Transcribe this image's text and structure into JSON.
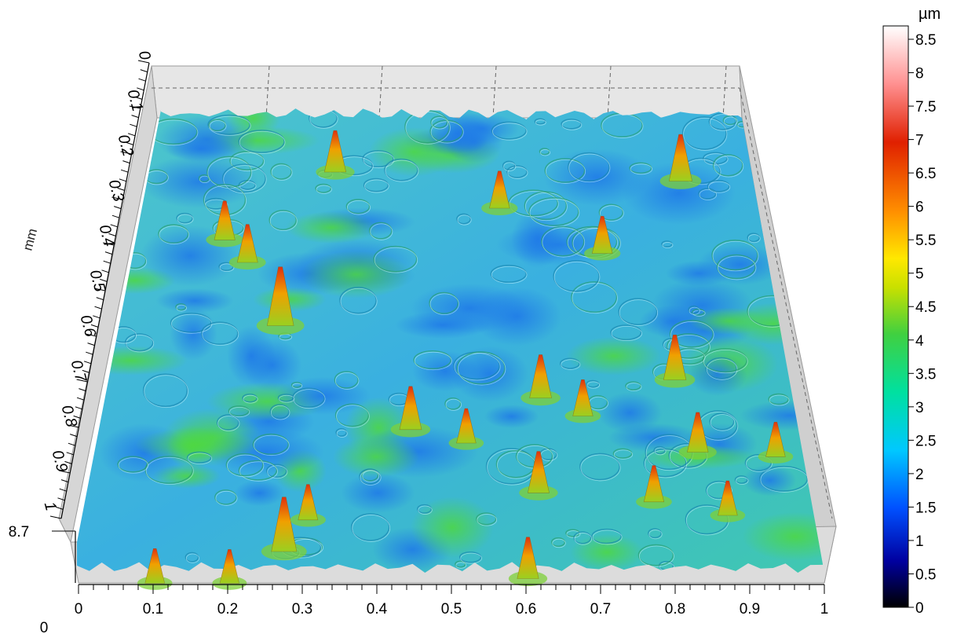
{
  "chart_data": {
    "type": "heatmap",
    "title": "",
    "view": "3D surface",
    "x_axis": {
      "range": [
        0,
        1
      ],
      "ticks": [
        "0",
        "0.1",
        "0.2",
        "0.3",
        "0.4",
        "0.5",
        "0.6",
        "0.7",
        "0.8",
        "0.9",
        "1"
      ]
    },
    "y_axis": {
      "label": "mm",
      "range": [
        0,
        1
      ],
      "ticks": [
        "0",
        "0.1",
        "0.2",
        "0.3",
        "0.4",
        "0.5",
        "0.6",
        "0.7",
        "0.8",
        "0.9",
        "1"
      ]
    },
    "z_axis": {
      "range": [
        0,
        8.7
      ],
      "ticks": [
        "0",
        "8.7"
      ]
    },
    "colorbar": {
      "unit": "µm",
      "range": [
        0,
        8.7
      ],
      "ticks": [
        "0",
        "0.5",
        "1",
        "1.5",
        "2",
        "2.5",
        "3",
        "3.5",
        "4",
        "4.5",
        "5",
        "5.5",
        "6",
        "6.5",
        "7",
        "7.5",
        "8",
        "8.5"
      ],
      "colors": [
        "#000000",
        "#0000a0",
        "#0050ff",
        "#00c8ff",
        "#00e0a0",
        "#40d040",
        "#c8e000",
        "#ffe800",
        "#ff9000",
        "#e02000",
        "#ff9090",
        "#ffffff"
      ]
    },
    "peaks": [
      {
        "x": 0.24,
        "y": 0.46,
        "z": 6.8
      },
      {
        "x": 0.27,
        "y": 0.96,
        "z": 6.3
      },
      {
        "x": 0.88,
        "y": 0.14,
        "z": 5.4
      },
      {
        "x": 0.31,
        "y": 0.12,
        "z": 4.8
      },
      {
        "x": 0.83,
        "y": 0.58,
        "z": 5.2
      },
      {
        "x": 0.63,
        "y": 0.62,
        "z": 5.0
      },
      {
        "x": 0.44,
        "y": 0.69,
        "z": 5.0
      },
      {
        "x": 0.62,
        "y": 0.83,
        "z": 4.8
      },
      {
        "x": 0.85,
        "y": 0.74,
        "z": 4.6
      },
      {
        "x": 0.6,
        "y": 1.02,
        "z": 4.8
      },
      {
        "x": 0.14,
        "y": 0.27,
        "z": 4.5
      },
      {
        "x": 0.18,
        "y": 0.32,
        "z": 4.4
      },
      {
        "x": 0.58,
        "y": 0.2,
        "z": 4.3
      },
      {
        "x": 0.74,
        "y": 0.3,
        "z": 4.3
      },
      {
        "x": 0.69,
        "y": 0.66,
        "z": 4.2
      },
      {
        "x": 0.3,
        "y": 0.89,
        "z": 4.1
      },
      {
        "x": 0.96,
        "y": 0.75,
        "z": 4.0
      },
      {
        "x": 0.1,
        "y": 1.03,
        "z": 4.0
      },
      {
        "x": 0.2,
        "y": 1.03,
        "z": 3.9
      },
      {
        "x": 0.52,
        "y": 0.72,
        "z": 4.0
      },
      {
        "x": 0.78,
        "y": 0.85,
        "z": 4.2
      },
      {
        "x": 0.88,
        "y": 0.88,
        "z": 4.0
      }
    ]
  }
}
